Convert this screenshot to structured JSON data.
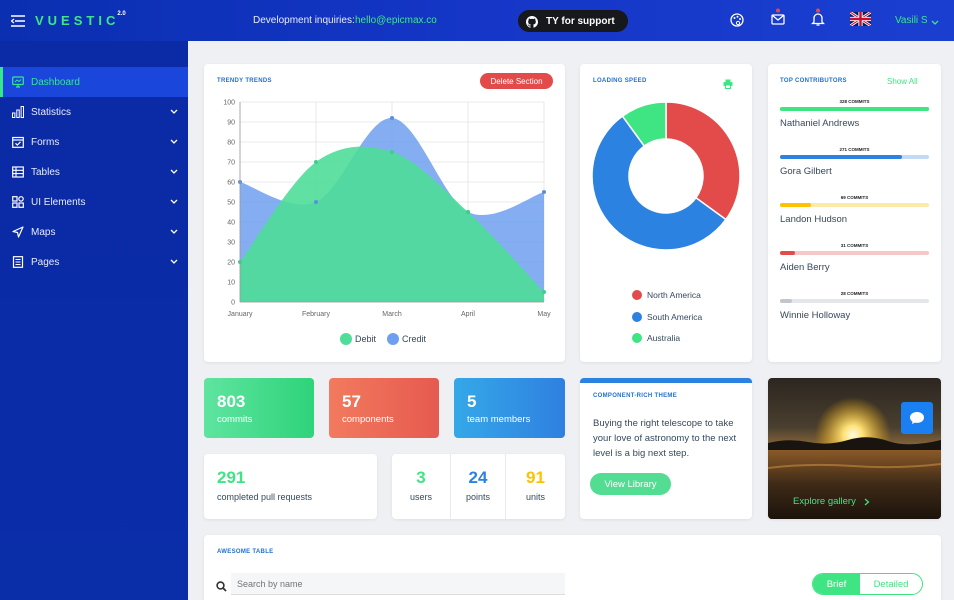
{
  "topbar": {
    "logo": "VUESTIC",
    "logo_version": "2.0",
    "inquiries_label": "Development inquiries:",
    "inquiries_email": "hello@epicmax.co",
    "support_button": "TY for support",
    "user_name": "Vasili S"
  },
  "sidebar": {
    "items": [
      {
        "label": "Dashboard",
        "icon": "monitor-icon",
        "active": true
      },
      {
        "label": "Statistics",
        "icon": "bar-chart-icon"
      },
      {
        "label": "Forms",
        "icon": "checkbox-form-icon"
      },
      {
        "label": "Tables",
        "icon": "table-icon"
      },
      {
        "label": "UI Elements",
        "icon": "ui-elements-icon"
      },
      {
        "label": "Maps",
        "icon": "navigation-arrow-icon"
      },
      {
        "label": "Pages",
        "icon": "page-icon"
      }
    ]
  },
  "trendy": {
    "title": "TRENDY TRENDS",
    "delete_button": "Delete Section"
  },
  "loading": {
    "title": "LOADING SPEED"
  },
  "contributors": {
    "title": "TOP CONTRIBUTORS",
    "show_all": "Show All",
    "people": [
      {
        "commits": "328 COMMITS",
        "name": "Nathaniel Andrews",
        "fraction": 1.0,
        "color": "#40e583",
        "track": "#40e583"
      },
      {
        "commits": "271 COMMITS",
        "name": "Gora Gilbert",
        "fraction": 0.82,
        "color": "#2c82e0",
        "track": "#c3daf6"
      },
      {
        "commits": "69 COMMITS",
        "name": "Landon Hudson",
        "fraction": 0.21,
        "color": "#ffc200",
        "track": "#fde9a8"
      },
      {
        "commits": "31 COMMITS",
        "name": "Aiden Berry",
        "fraction": 0.1,
        "color": "#e34b4a",
        "track": "#f6c7c7"
      },
      {
        "commits": "28 COMMITS",
        "name": "Winnie Holloway",
        "fraction": 0.08,
        "color": "#c2c6cc",
        "track": "#e4e6e9"
      }
    ]
  },
  "stats": {
    "commits": {
      "value": "803",
      "label": "commits"
    },
    "components": {
      "value": "57",
      "label": "components"
    },
    "team": {
      "value": "5",
      "label": "team members"
    },
    "pull_requests": {
      "value": "291",
      "label": "completed pull requests"
    },
    "users": {
      "value": "3",
      "label": "users"
    },
    "points": {
      "value": "24",
      "label": "points"
    },
    "units": {
      "value": "91",
      "label": "units"
    }
  },
  "theme": {
    "title": "COMPONENT-RICH THEME",
    "text": "Buying the right telescope to take your love of astronomy to the next level is a big next step.",
    "button": "View Library"
  },
  "gallery": {
    "link": "Explore gallery"
  },
  "table": {
    "title": "AWESOME TABLE",
    "search_placeholder": "Search by name",
    "toggle_brief": "Brief",
    "toggle_detailed": "Detailed"
  },
  "colors": {
    "accent_green": "#40e583",
    "accent_blue": "#2c82e0",
    "accent_red": "#e34b4a",
    "sidebar_bg": "#0b2aa5"
  },
  "chart_data": [
    {
      "type": "area",
      "x": [
        "January",
        "February",
        "March",
        "April",
        "May"
      ],
      "ylim": [
        0,
        100
      ],
      "yticks": [
        0,
        10,
        20,
        30,
        40,
        50,
        60,
        70,
        80,
        90,
        100
      ],
      "series": [
        {
          "name": "Debit",
          "values": [
            20,
            70,
            75,
            45,
            5
          ],
          "color": "#4fdd98"
        },
        {
          "name": "Credit",
          "values": [
            60,
            50,
            92,
            45,
            55
          ],
          "color": "#6e9ff0"
        }
      ],
      "legend_position": "bottom",
      "grid": true
    },
    {
      "type": "pie",
      "donut": true,
      "categories": [
        "North America",
        "South America",
        "Australia"
      ],
      "values": [
        35,
        55,
        10
      ],
      "colors": [
        "#e34b4a",
        "#2c82e0",
        "#40e583"
      ],
      "legend_position": "bottom"
    }
  ]
}
